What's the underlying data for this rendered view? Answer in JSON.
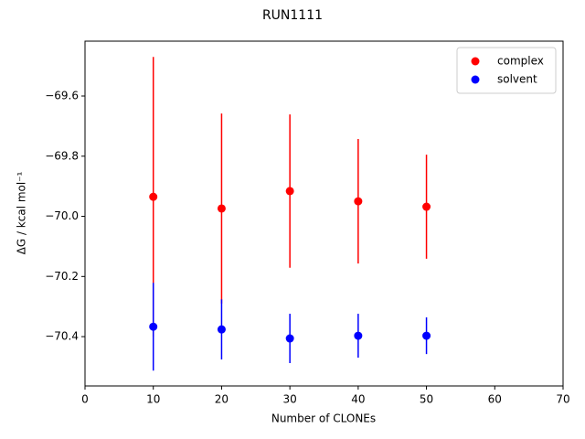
{
  "chart_data": {
    "type": "errorbar",
    "title": "RUN1111",
    "x_label": "Number of CLONEs",
    "y_label": "ΔG / kcal mol⁻¹",
    "x": [
      10,
      20,
      30,
      40,
      50
    ],
    "series": [
      {
        "name": "complex",
        "color": "#ff0000",
        "values": [
          -69.935,
          -69.974,
          -69.916,
          -69.95,
          -69.968
        ],
        "errors": [
          0.465,
          0.316,
          0.255,
          0.207,
          0.173
        ]
      },
      {
        "name": "solvent",
        "color": "#0000ff",
        "values": [
          -70.367,
          -70.376,
          -70.406,
          -70.397,
          -70.397
        ],
        "errors": [
          0.146,
          0.1,
          0.082,
          0.073,
          0.061
        ]
      }
    ],
    "xlim": [
      0,
      70
    ],
    "xticks": [
      0,
      10,
      20,
      30,
      40,
      50,
      60,
      70
    ],
    "ylim": [
      -70.564,
      -69.4175
    ],
    "yticks": [
      {
        "value": -69.6,
        "label": "−69.6"
      },
      {
        "value": -69.8,
        "label": "−69.8"
      },
      {
        "value": -70.0,
        "label": "−70.0"
      },
      {
        "value": -70.2,
        "label": "−70.2"
      },
      {
        "value": -70.4,
        "label": "−70.4"
      }
    ],
    "legend": "upper right",
    "grid": false
  }
}
